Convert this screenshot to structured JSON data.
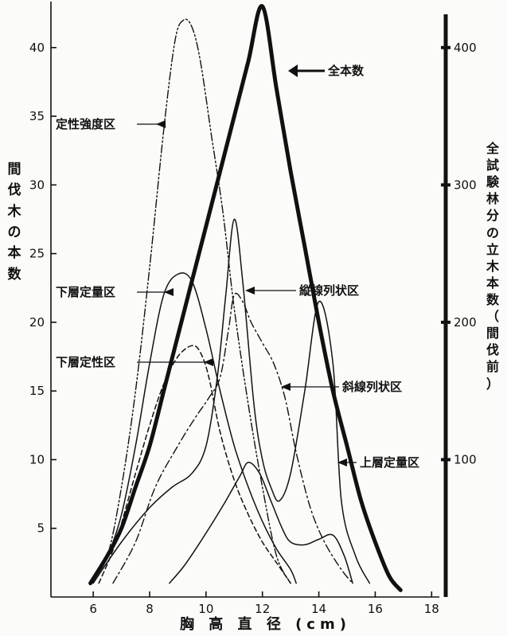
{
  "chart_data": {
    "type": "line",
    "xlabel": "胸 高 直 径 (cm)",
    "ylabel_left": "間伐木の本数",
    "ylabel_right": "全試験林分の立木本数（間伐前）",
    "xlim": [
      4.5,
      18.5
    ],
    "xticks": [
      6,
      8,
      10,
      12,
      14,
      16,
      18
    ],
    "ylim_left": [
      0,
      43
    ],
    "yticks_left": [
      5,
      10,
      15,
      20,
      25,
      30,
      35,
      40
    ],
    "ylim_right": [
      0,
      430
    ],
    "yticks_right": [
      100,
      200,
      300,
      400
    ],
    "series": [
      {
        "name": "全本数",
        "axis": "right",
        "style": "thick",
        "x": [
          5.9,
          6.5,
          7.0,
          7.5,
          8.0,
          8.5,
          9.0,
          9.5,
          10.0,
          10.5,
          11.0,
          11.5,
          12.0,
          12.5,
          13.0,
          13.5,
          14.0,
          14.5,
          15.0,
          15.5,
          16.0,
          16.5,
          16.9
        ],
        "values": [
          10,
          30,
          50,
          80,
          110,
          150,
          190,
          230,
          270,
          310,
          350,
          390,
          430,
          370,
          310,
          255,
          200,
          150,
          110,
          70,
          40,
          15,
          5
        ]
      },
      {
        "name": "定性強度区",
        "axis": "left",
        "style": "dashdotdot",
        "x": [
          5.9,
          6.5,
          7.0,
          7.5,
          8.0,
          8.5,
          8.9,
          9.2,
          9.5,
          9.8,
          10.2,
          10.6,
          11.0,
          11.5,
          12.0,
          12.5,
          13.0
        ],
        "values": [
          1,
          3,
          8,
          15,
          24,
          34,
          40.5,
          42,
          41.5,
          39,
          33.5,
          28,
          21,
          14,
          8,
          3,
          1
        ]
      },
      {
        "name": "下層定量区",
        "axis": "left",
        "style": "solid",
        "x": [
          5.9,
          6.5,
          7.0,
          7.5,
          8.0,
          8.5,
          9.0,
          9.5,
          10.0,
          10.5,
          11.0,
          11.5,
          12.0,
          12.5,
          13.0,
          13.2
        ],
        "values": [
          1,
          3,
          6,
          11,
          17,
          22,
          23.5,
          23,
          19.5,
          15,
          11,
          8,
          5.5,
          3.5,
          2,
          1
        ]
      },
      {
        "name": "下層定性区",
        "axis": "left",
        "style": "dashed",
        "x": [
          6.2,
          6.8,
          7.5,
          8.0,
          8.5,
          9.0,
          9.5,
          9.8,
          10.1,
          10.5,
          11.0,
          11.5,
          12.0,
          12.5,
          13.0
        ],
        "values": [
          1,
          4,
          9,
          12.5,
          15.5,
          17.5,
          18.3,
          17.8,
          16,
          12,
          8.5,
          6,
          4,
          2.5,
          1
        ]
      },
      {
        "name": "縦線列状区",
        "axis": "left",
        "style": "solid",
        "x": [
          6.0,
          7.0,
          8.0,
          8.8,
          9.5,
          10.0,
          10.4,
          10.7,
          11.0,
          11.3,
          11.7,
          12.0,
          12.3,
          12.6,
          13.0,
          13.5,
          14.0,
          14.5,
          14.8,
          15.3,
          15.8
        ],
        "values": [
          1,
          4,
          6.5,
          8,
          9,
          11,
          16,
          22,
          27.5,
          23,
          14,
          10,
          8,
          7,
          9,
          15,
          21.5,
          17,
          7,
          3,
          1
        ]
      },
      {
        "name": "斜線列状区",
        "axis": "left",
        "style": "dashdot",
        "x": [
          6.7,
          7.5,
          8.2,
          9.0,
          9.6,
          10.1,
          10.5,
          10.8,
          11.0,
          11.3,
          11.6,
          12.0,
          12.4,
          12.8,
          13.2,
          13.7,
          14.2,
          14.8,
          15.2
        ],
        "values": [
          1,
          4,
          8,
          11,
          13,
          14.5,
          16,
          19.5,
          22,
          21.5,
          20,
          18.5,
          17,
          14.5,
          10.5,
          6.5,
          4,
          2,
          1
        ]
      },
      {
        "name": "上層定量区",
        "axis": "left",
        "style": "solid",
        "x": [
          8.7,
          9.2,
          9.7,
          10.2,
          10.7,
          11.2,
          11.5,
          11.9,
          12.3,
          12.7,
          13.0,
          13.5,
          14.0,
          14.5,
          14.9,
          15.2
        ],
        "values": [
          1,
          2.2,
          3.7,
          5.3,
          7,
          8.8,
          9.8,
          9,
          7,
          5,
          4,
          3.8,
          4.2,
          4.5,
          3,
          1
        ]
      }
    ],
    "annotations": [
      "全本数",
      "定性強度区",
      "下層定量区",
      "下層定性区",
      "縦線列状区",
      "斜線列状区",
      "上層定量区"
    ]
  }
}
